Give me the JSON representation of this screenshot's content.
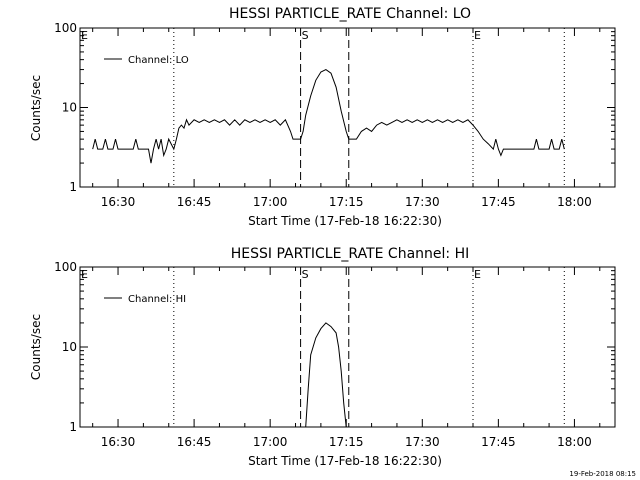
{
  "chart_data": [
    {
      "type": "line",
      "title": "HESSI PARTICLE_RATE Channel: LO",
      "xlabel": "Start Time (17-Feb-18 16:22:30)",
      "ylabel": "Counts/sec",
      "yscale": "log",
      "ylim": [
        1,
        100
      ],
      "xlim": [
        "16:22:30",
        "18:08:00"
      ],
      "x_ticks": [
        "16:30",
        "16:45",
        "17:00",
        "17:15",
        "17:30",
        "17:45",
        "18:00"
      ],
      "y_ticks": [
        "1",
        "10",
        "100"
      ],
      "legend": {
        "label": "Channel: LO",
        "placement": "top-left"
      },
      "markers": [
        {
          "label": "E",
          "time": "16:22:30",
          "style": "dotted"
        },
        {
          "label": "",
          "time": "16:41:00",
          "style": "dotted"
        },
        {
          "label": "S",
          "time": "17:06:00",
          "style": "dashed"
        },
        {
          "label": "",
          "time": "17:15:30",
          "style": "dashed"
        },
        {
          "label": "E",
          "time": "17:40:00",
          "style": "dotted"
        },
        {
          "label": "",
          "time": "17:58:00",
          "style": "dotted"
        }
      ],
      "series": [
        {
          "points": [
            [
              "16:25:00",
              3
            ],
            [
              "16:25:30",
              4
            ],
            [
              "16:26:00",
              3
            ],
            [
              "16:27:00",
              3
            ],
            [
              "16:27:30",
              4
            ],
            [
              "16:28:00",
              3
            ],
            [
              "16:29:00",
              3
            ],
            [
              "16:29:30",
              4
            ],
            [
              "16:30:00",
              3
            ],
            [
              "16:33:00",
              3
            ],
            [
              "16:33:30",
              4
            ],
            [
              "16:34:00",
              3
            ],
            [
              "16:36:00",
              3
            ],
            [
              "16:36:30",
              2
            ],
            [
              "16:37:00",
              3
            ],
            [
              "16:37:30",
              4
            ],
            [
              "16:38:00",
              3
            ],
            [
              "16:38:30",
              4
            ],
            [
              "16:39:00",
              2.5
            ],
            [
              "16:39:30",
              3
            ],
            [
              "16:40:00",
              4
            ],
            [
              "16:41:00",
              3
            ],
            [
              "16:41:30",
              4
            ],
            [
              "16:42:00",
              5.5
            ],
            [
              "16:42:30",
              6
            ],
            [
              "16:43:00",
              5.5
            ],
            [
              "16:43:30",
              7
            ],
            [
              "16:44:00",
              6
            ],
            [
              "16:45:00",
              7
            ],
            [
              "16:46:00",
              6.5
            ],
            [
              "16:47:00",
              7
            ],
            [
              "16:48:00",
              6.5
            ],
            [
              "16:49:00",
              7
            ],
            [
              "16:50:00",
              6.5
            ],
            [
              "16:51:00",
              7
            ],
            [
              "16:52:00",
              6
            ],
            [
              "16:53:00",
              7
            ],
            [
              "16:54:00",
              6
            ],
            [
              "16:55:00",
              7
            ],
            [
              "16:56:00",
              6.5
            ],
            [
              "16:57:00",
              7
            ],
            [
              "16:58:00",
              6.5
            ],
            [
              "16:59:00",
              7
            ],
            [
              "17:00:00",
              6.5
            ],
            [
              "17:01:00",
              7
            ],
            [
              "17:02:00",
              6
            ],
            [
              "17:03:00",
              7
            ],
            [
              "17:04:00",
              5
            ],
            [
              "17:04:30",
              4
            ],
            [
              "17:06:00",
              4
            ],
            [
              "17:06:30",
              5
            ],
            [
              "17:07:00",
              8
            ],
            [
              "17:08:00",
              14
            ],
            [
              "17:09:00",
              22
            ],
            [
              "17:10:00",
              28
            ],
            [
              "17:11:00",
              30
            ],
            [
              "17:12:00",
              27
            ],
            [
              "17:13:00",
              18
            ],
            [
              "17:14:00",
              9
            ],
            [
              "17:15:00",
              5
            ],
            [
              "17:15:30",
              4
            ],
            [
              "17:17:00",
              4
            ],
            [
              "17:18:00",
              5
            ],
            [
              "17:19:00",
              5.5
            ],
            [
              "17:20:00",
              5
            ],
            [
              "17:21:00",
              6
            ],
            [
              "17:22:00",
              6.5
            ],
            [
              "17:23:00",
              6
            ],
            [
              "17:24:00",
              6.5
            ],
            [
              "17:25:00",
              7
            ],
            [
              "17:26:00",
              6.5
            ],
            [
              "17:27:00",
              7
            ],
            [
              "17:28:00",
              6.5
            ],
            [
              "17:29:00",
              7
            ],
            [
              "17:30:00",
              6.5
            ],
            [
              "17:31:00",
              7
            ],
            [
              "17:32:00",
              6.5
            ],
            [
              "17:33:00",
              7
            ],
            [
              "17:34:00",
              6.5
            ],
            [
              "17:35:00",
              7
            ],
            [
              "17:36:00",
              6.5
            ],
            [
              "17:37:00",
              7
            ],
            [
              "17:38:00",
              6.5
            ],
            [
              "17:39:00",
              7
            ],
            [
              "17:40:00",
              6
            ],
            [
              "17:41:00",
              5
            ],
            [
              "17:42:00",
              4
            ],
            [
              "17:43:00",
              3.5
            ],
            [
              "17:44:00",
              3
            ],
            [
              "17:44:30",
              4
            ],
            [
              "17:45:00",
              3
            ],
            [
              "17:45:30",
              2.5
            ],
            [
              "17:46:00",
              3
            ],
            [
              "17:47:00",
              3
            ],
            [
              "17:52:00",
              3
            ],
            [
              "17:52:30",
              4
            ],
            [
              "17:53:00",
              3
            ],
            [
              "17:55:00",
              3
            ],
            [
              "17:55:30",
              4
            ],
            [
              "17:56:00",
              3
            ],
            [
              "17:57:00",
              3
            ],
            [
              "17:57:30",
              4
            ],
            [
              "17:58:00",
              3
            ]
          ]
        }
      ]
    },
    {
      "type": "line",
      "title": "HESSI PARTICLE_RATE Channel: HI",
      "xlabel": "Start Time (17-Feb-18 16:22:30)",
      "ylabel": "Counts/sec",
      "yscale": "log",
      "ylim": [
        1,
        100
      ],
      "xlim": [
        "16:22:30",
        "18:08:00"
      ],
      "x_ticks": [
        "16:30",
        "16:45",
        "17:00",
        "17:15",
        "17:30",
        "17:45",
        "18:00"
      ],
      "y_ticks": [
        "1",
        "10",
        "100"
      ],
      "legend": {
        "label": "Channel: HI",
        "placement": "top-left"
      },
      "markers": [
        {
          "label": "E",
          "time": "16:22:30",
          "style": "dotted"
        },
        {
          "label": "",
          "time": "16:41:00",
          "style": "dotted"
        },
        {
          "label": "S",
          "time": "17:06:00",
          "style": "dashed"
        },
        {
          "label": "",
          "time": "17:15:30",
          "style": "dashed"
        },
        {
          "label": "E",
          "time": "17:40:00",
          "style": "dotted"
        },
        {
          "label": "",
          "time": "17:58:00",
          "style": "dotted"
        }
      ],
      "series": [
        {
          "points": [
            [
              "17:07:00",
              1
            ],
            [
              "17:07:30",
              3
            ],
            [
              "17:08:00",
              8
            ],
            [
              "17:09:00",
              13
            ],
            [
              "17:10:00",
              17
            ],
            [
              "17:11:00",
              20
            ],
            [
              "17:12:00",
              18
            ],
            [
              "17:13:00",
              15
            ],
            [
              "17:13:30",
              10
            ],
            [
              "17:14:00",
              5
            ],
            [
              "17:14:30",
              2
            ],
            [
              "17:15:00",
              1
            ]
          ]
        }
      ]
    }
  ],
  "footer": {
    "timestamp": "19-Feb-2018 08:15"
  }
}
